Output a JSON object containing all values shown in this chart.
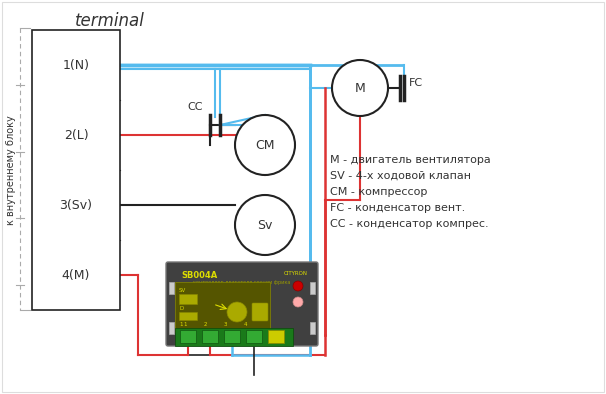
{
  "title": "terminal",
  "sidebar_text": "к внутреннему блоку",
  "terminal_labels": [
    "1(N)",
    "2(L)",
    "3(Sv)",
    "4(M)"
  ],
  "legend_lines": [
    "М - двигатель вентилятора",
    "SV - 4-х ходовой клапан",
    "СМ - компрессор",
    "FC - конденсатор вент.",
    "СС - конденсатор компрес."
  ],
  "bg_color": "#ffffff",
  "blue": "#55bbee",
  "red": "#dd3333",
  "black": "#222222",
  "text_color": "#333333"
}
